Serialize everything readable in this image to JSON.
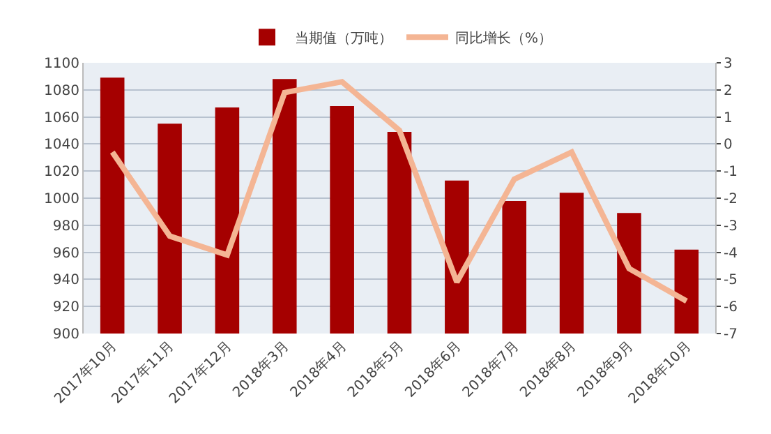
{
  "chart_data": {
    "type": "bar",
    "categories": [
      "2017年10月",
      "2017年11月",
      "2017年12月",
      "2018年3月",
      "2018年4月",
      "2018年5月",
      "2018年6月",
      "2018年7月",
      "2018年8月",
      "2018年9月",
      "2018年10月"
    ],
    "series": [
      {
        "name": "当期值（万吨）",
        "color": "#a50000",
        "values": [
          1089,
          1055,
          1067,
          1088,
          1068,
          1049,
          1013,
          998,
          1004,
          989,
          962
        ]
      },
      {
        "name": "同比增长（%）",
        "type": "line",
        "axis": "y2",
        "color": "#f4b594",
        "values": [
          -0.3,
          -3.4,
          -4.1,
          1.9,
          2.3,
          0.5,
          -5.1,
          -1.3,
          -0.3,
          -4.6,
          -5.8
        ]
      }
    ],
    "ylim": [
      900,
      1100
    ],
    "yticks": [
      900,
      920,
      940,
      960,
      980,
      1000,
      1020,
      1040,
      1060,
      1080,
      1100
    ],
    "y2lim": [
      -7,
      3
    ],
    "y2ticks": [
      -7,
      -6,
      -5,
      -4,
      -3,
      -2,
      -1,
      0,
      1,
      2,
      3
    ],
    "grid": true,
    "legend": "top",
    "marker": "none",
    "line_style": "solid"
  }
}
